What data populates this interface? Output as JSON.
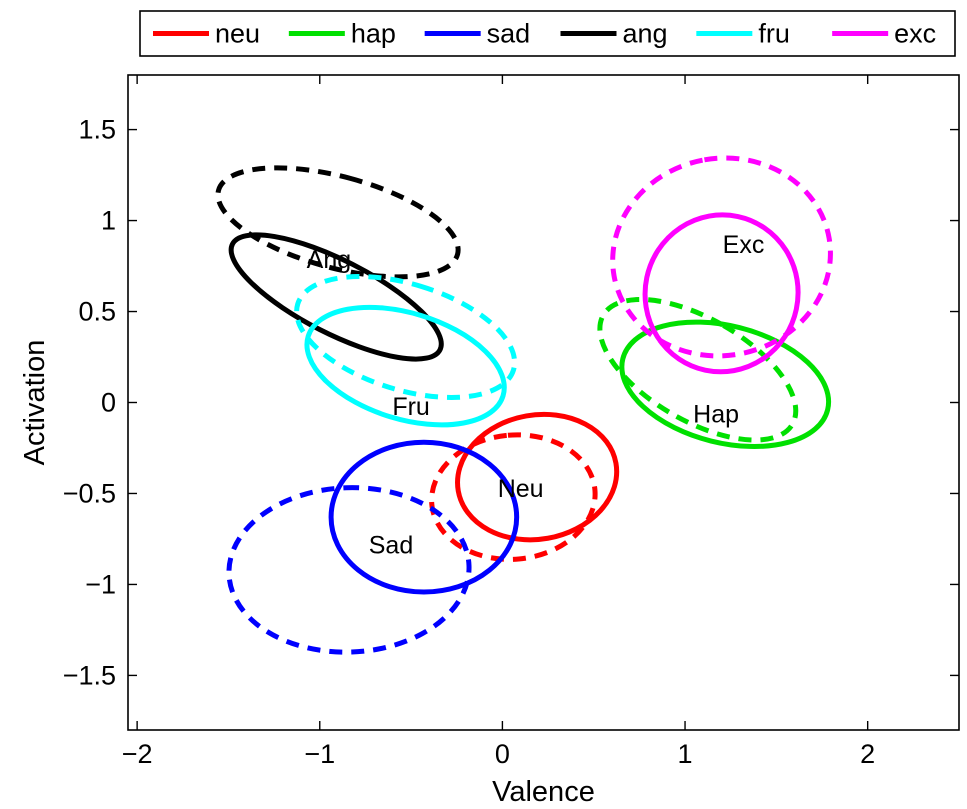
{
  "chart_data": {
    "type": "scatter",
    "title": "",
    "xlabel": "Valence",
    "ylabel": "Activation",
    "xlim": [
      -2.05,
      2.5
    ],
    "ylim": [
      -1.8,
      1.8
    ],
    "x_ticks": [
      -2,
      -1,
      0,
      1,
      2
    ],
    "x_tick_labels": [
      "−2",
      "−1",
      "0",
      "1",
      "2"
    ],
    "y_ticks": [
      -1.5,
      -1,
      -0.5,
      0,
      0.5,
      1,
      1.5
    ],
    "y_tick_labels": [
      "−1.5",
      "−1",
      "−0.5",
      "0",
      "0.5",
      "1",
      "1.5"
    ],
    "legend_position": "top, outside plot",
    "series": [
      {
        "name": "neu",
        "label": "Neu",
        "color": "#ff0000",
        "label_pos": [
          0.1,
          -0.47
        ],
        "solid": {
          "cx": 0.19,
          "cy": -0.41,
          "rx": 0.34,
          "ry": 0.44,
          "angle_deg": 100
        },
        "dashed": {
          "cx": 0.06,
          "cy": -0.52,
          "rx": 0.34,
          "ry": 0.45,
          "angle_deg": 95
        }
      },
      {
        "name": "hap",
        "label": "Hap",
        "color": "#00e000",
        "label_pos": [
          1.17,
          -0.06
        ],
        "solid": {
          "cx": 1.22,
          "cy": 0.1,
          "rx": 0.32,
          "ry": 0.58,
          "angle_deg": 76
        },
        "dashed": {
          "cx": 1.07,
          "cy": 0.18,
          "rx": 0.28,
          "ry": 0.6,
          "angle_deg": 60
        }
      },
      {
        "name": "sad",
        "label": "Sad",
        "color": "#0000ff",
        "label_pos": [
          -0.61,
          -0.78
        ],
        "solid": {
          "cx": -0.43,
          "cy": -0.63,
          "rx": 0.41,
          "ry": 0.51,
          "angle_deg": 90
        },
        "dashed": {
          "cx": -0.84,
          "cy": -0.92,
          "rx": 0.45,
          "ry": 0.66,
          "angle_deg": 92
        }
      },
      {
        "name": "ang",
        "label": "Ang",
        "color": "#000000",
        "label_pos": [
          -0.95,
          0.79
        ],
        "solid": {
          "cx": -0.91,
          "cy": 0.58,
          "rx": 0.2,
          "ry": 0.64,
          "angle_deg": 63
        },
        "dashed": {
          "cx": -0.9,
          "cy": 0.99,
          "rx": 0.25,
          "ry": 0.68,
          "angle_deg": 75
        }
      },
      {
        "name": "fru",
        "label": "Fru",
        "color": "#00ffff",
        "label_pos": [
          -0.5,
          -0.02
        ],
        "solid": {
          "cx": -0.53,
          "cy": 0.2,
          "rx": 0.29,
          "ry": 0.56,
          "angle_deg": 73
        },
        "dashed": {
          "cx": -0.53,
          "cy": 0.36,
          "rx": 0.29,
          "ry": 0.62,
          "angle_deg": 73
        }
      },
      {
        "name": "exc",
        "label": "Exc",
        "color": "#ff00ff",
        "label_pos": [
          1.32,
          0.87
        ],
        "solid": {
          "cx": 1.2,
          "cy": 0.6,
          "rx": 0.43,
          "ry": 0.42,
          "angle_deg": 78
        },
        "dashed": {
          "cx": 1.2,
          "cy": 0.8,
          "rx": 0.54,
          "ry": 0.6,
          "angle_deg": 100
        }
      }
    ]
  }
}
